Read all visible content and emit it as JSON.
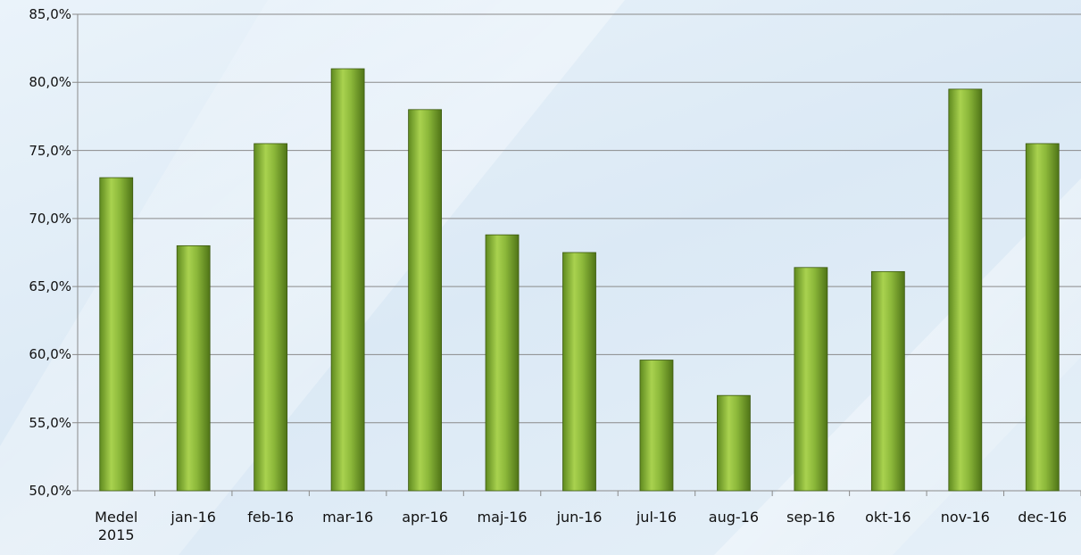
{
  "chart_data": {
    "type": "bar",
    "categories": [
      "Medel 2015",
      "jan-16",
      "feb-16",
      "mar-16",
      "apr-16",
      "maj-16",
      "jun-16",
      "jul-16",
      "aug-16",
      "sep-16",
      "okt-16",
      "nov-16",
      "dec-16"
    ],
    "values": [
      73.0,
      68.0,
      75.5,
      81.0,
      78.0,
      68.8,
      67.5,
      59.6,
      57.0,
      66.4,
      66.1,
      79.5,
      75.5
    ],
    "color": "#8cb83a",
    "ylim": [
      50,
      85
    ],
    "yticks": [
      {
        "value": 50,
        "label": "50,0%"
      },
      {
        "value": 55,
        "label": "55,0%"
      },
      {
        "value": 60,
        "label": "60,0%"
      },
      {
        "value": 65,
        "label": "65,0%"
      },
      {
        "value": 70,
        "label": "70,0%"
      },
      {
        "value": 75,
        "label": "75,0%"
      },
      {
        "value": 80,
        "label": "80,0%"
      },
      {
        "value": 85,
        "label": "85,0%"
      }
    ],
    "grid": true
  }
}
